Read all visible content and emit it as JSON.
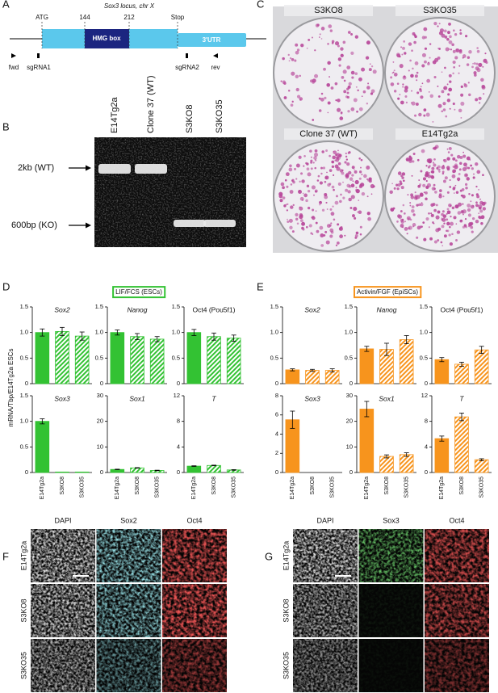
{
  "panel_a": {
    "label": "A",
    "locus": "Sox3 locus, chr X",
    "start_codon": "ATG",
    "pos_start": "144",
    "pos_end": "212",
    "stop_codon": "Stop",
    "domain": "HMG box",
    "utr": "3'UTR",
    "primers": [
      "fwd",
      "rev"
    ],
    "guides": [
      "sgRNA1",
      "sgRNA2"
    ]
  },
  "panel_b": {
    "label": "B",
    "lanes": [
      "E14Tg2a",
      "Clone 37 (WT)",
      "S3KO8",
      "S3KO35"
    ],
    "bands": [
      "2kb (WT)",
      "600bp (KO)"
    ]
  },
  "panel_c": {
    "label": "C",
    "plates": [
      "S3KO8",
      "S3KO35",
      "Clone 37 (WT)",
      "E14Tg2a"
    ]
  },
  "panel_d": {
    "label": "D",
    "condition": "LIF/FCS (ESCs)",
    "y_label": "mRNA/Tbp/E14Tg2a ESCs"
  },
  "panel_e": {
    "label": "E",
    "condition": "Activin/FGF (EpiSCs)"
  },
  "chart_data": [
    {
      "type": "bar",
      "title": "Sox2",
      "values": [
        1.0,
        1.02,
        0.93
      ],
      "errors": [
        0.07,
        0.08,
        0.08
      ],
      "color": "#33c233",
      "hatched": [
        false,
        true,
        true
      ],
      "ylim": [
        0,
        1.5
      ],
      "yticks": [
        0,
        0.5,
        {
          "value": 1,
          "label": "1.0"
        },
        1.5
      ]
    },
    {
      "type": "bar",
      "title": "Nanog",
      "values": [
        1.0,
        0.92,
        0.87
      ],
      "errors": [
        0.05,
        0.06,
        0.05
      ],
      "color": "#33c233",
      "hatched": [
        false,
        true,
        true
      ],
      "ylim": [
        0,
        1.5
      ],
      "yticks": [
        0,
        0.5,
        {
          "value": 1,
          "label": "1.0"
        },
        1.5
      ]
    },
    {
      "type": "bar",
      "title": "Oct4 (Pou5f1)",
      "values": [
        1.0,
        0.92,
        0.89
      ],
      "errors": [
        0.06,
        0.07,
        0.06
      ],
      "color": "#33c233",
      "hatched": [
        false,
        true,
        true
      ],
      "ylim": [
        0,
        1.5
      ],
      "yticks": [
        0,
        0.5,
        {
          "value": 1,
          "label": "1.0"
        },
        1.5
      ]
    },
    {
      "type": "bar",
      "title": "Sox3",
      "categories": [
        "E14Tg2a",
        "S3KO8",
        "S3KO35"
      ],
      "values": [
        1.0,
        0.01,
        0.01
      ],
      "errors": [
        0.05,
        0,
        0
      ],
      "color": "#33c233",
      "hatched": [
        false,
        true,
        true
      ],
      "ylim": [
        0,
        1.5
      ],
      "yticks": [
        0,
        0.5,
        {
          "value": 1,
          "label": "1.0"
        },
        1.5
      ]
    },
    {
      "type": "bar",
      "title": "Sox1",
      "categories": [
        "E14Tg2a",
        "S3KO8",
        "S3KO35"
      ],
      "values": [
        1.2,
        1.8,
        0.8
      ],
      "errors": [
        0.1,
        0.1,
        0.1
      ],
      "color": "#33c233",
      "hatched": [
        false,
        true,
        true
      ],
      "ylim": [
        0,
        30
      ],
      "yticks": [
        0,
        10,
        20,
        30
      ]
    },
    {
      "type": "bar",
      "title": "T",
      "categories": [
        "E14Tg2a",
        "S3KO8",
        "S3KO35"
      ],
      "values": [
        1.0,
        1.1,
        0.4
      ],
      "errors": [
        0.05,
        0.05,
        0.05
      ],
      "color": "#33c233",
      "hatched": [
        false,
        true,
        true
      ],
      "ylim": [
        0,
        12
      ],
      "yticks": [
        0,
        4,
        8,
        12
      ]
    },
    {
      "type": "bar",
      "title": "Sox2",
      "values": [
        0.27,
        0.26,
        0.26
      ],
      "errors": [
        0.02,
        0.02,
        0.03
      ],
      "color": "#f7941d",
      "hatched": [
        false,
        true,
        true
      ],
      "ylim": [
        0,
        1.5
      ],
      "yticks": [
        0,
        0.5,
        {
          "value": 1,
          "label": "1.0"
        },
        1.5
      ]
    },
    {
      "type": "bar",
      "title": "Nanog",
      "values": [
        0.68,
        0.67,
        0.86
      ],
      "errors": [
        0.05,
        0.12,
        0.08
      ],
      "color": "#f7941d",
      "hatched": [
        false,
        true,
        true
      ],
      "ylim": [
        0,
        1.5
      ],
      "yticks": [
        0,
        0.5,
        {
          "value": 1,
          "label": "1.0"
        },
        1.5
      ]
    },
    {
      "type": "bar",
      "title": "Oct4 (Pou5f1)",
      "values": [
        0.47,
        0.38,
        0.66
      ],
      "errors": [
        0.04,
        0.04,
        0.07
      ],
      "color": "#f7941d",
      "hatched": [
        false,
        true,
        true
      ],
      "ylim": [
        0,
        1.5
      ],
      "yticks": [
        0,
        0.5,
        {
          "value": 1,
          "label": "1.0"
        },
        1.5
      ]
    },
    {
      "type": "bar",
      "title": "Sox3",
      "categories": [
        "E14Tg2a",
        "S3KO8",
        "S3KO35"
      ],
      "values": [
        5.5,
        0,
        0
      ],
      "errors": [
        0.9,
        0,
        0
      ],
      "color": "#f7941d",
      "hatched": [
        false,
        true,
        true
      ],
      "ylim": [
        0,
        8
      ],
      "yticks": [
        0,
        2,
        4,
        6,
        8
      ]
    },
    {
      "type": "bar",
      "title": "Sox1",
      "categories": [
        "E14Tg2a",
        "S3KO8",
        "S3KO35"
      ],
      "values": [
        24.8,
        6.3,
        7.0
      ],
      "errors": [
        3,
        0.6,
        0.7
      ],
      "color": "#f7941d",
      "hatched": [
        false,
        true,
        true
      ],
      "ylim": [
        0,
        30
      ],
      "yticks": [
        0,
        10,
        20,
        30
      ]
    },
    {
      "type": "bar",
      "title": "T",
      "categories": [
        "E14Tg2a",
        "S3KO8",
        "S3KO35"
      ],
      "values": [
        5.3,
        8.7,
        2.0
      ],
      "errors": [
        0.4,
        0.6,
        0.15
      ],
      "color": "#f7941d",
      "hatched": [
        false,
        true,
        true
      ],
      "ylim": [
        0,
        12
      ],
      "yticks": [
        0,
        4,
        8,
        12
      ]
    }
  ],
  "panel_f": {
    "label": "F",
    "columns": [
      "DAPI",
      "Sox2",
      "Oct4"
    ],
    "rows": [
      "E14Tg2a",
      "S3KO8",
      "S3KO35"
    ]
  },
  "panel_g": {
    "label": "G",
    "columns": [
      "DAPI",
      "Sox3",
      "Oct4"
    ],
    "rows": [
      "E14Tg2a",
      "S3KO8",
      "S3KO35"
    ]
  }
}
